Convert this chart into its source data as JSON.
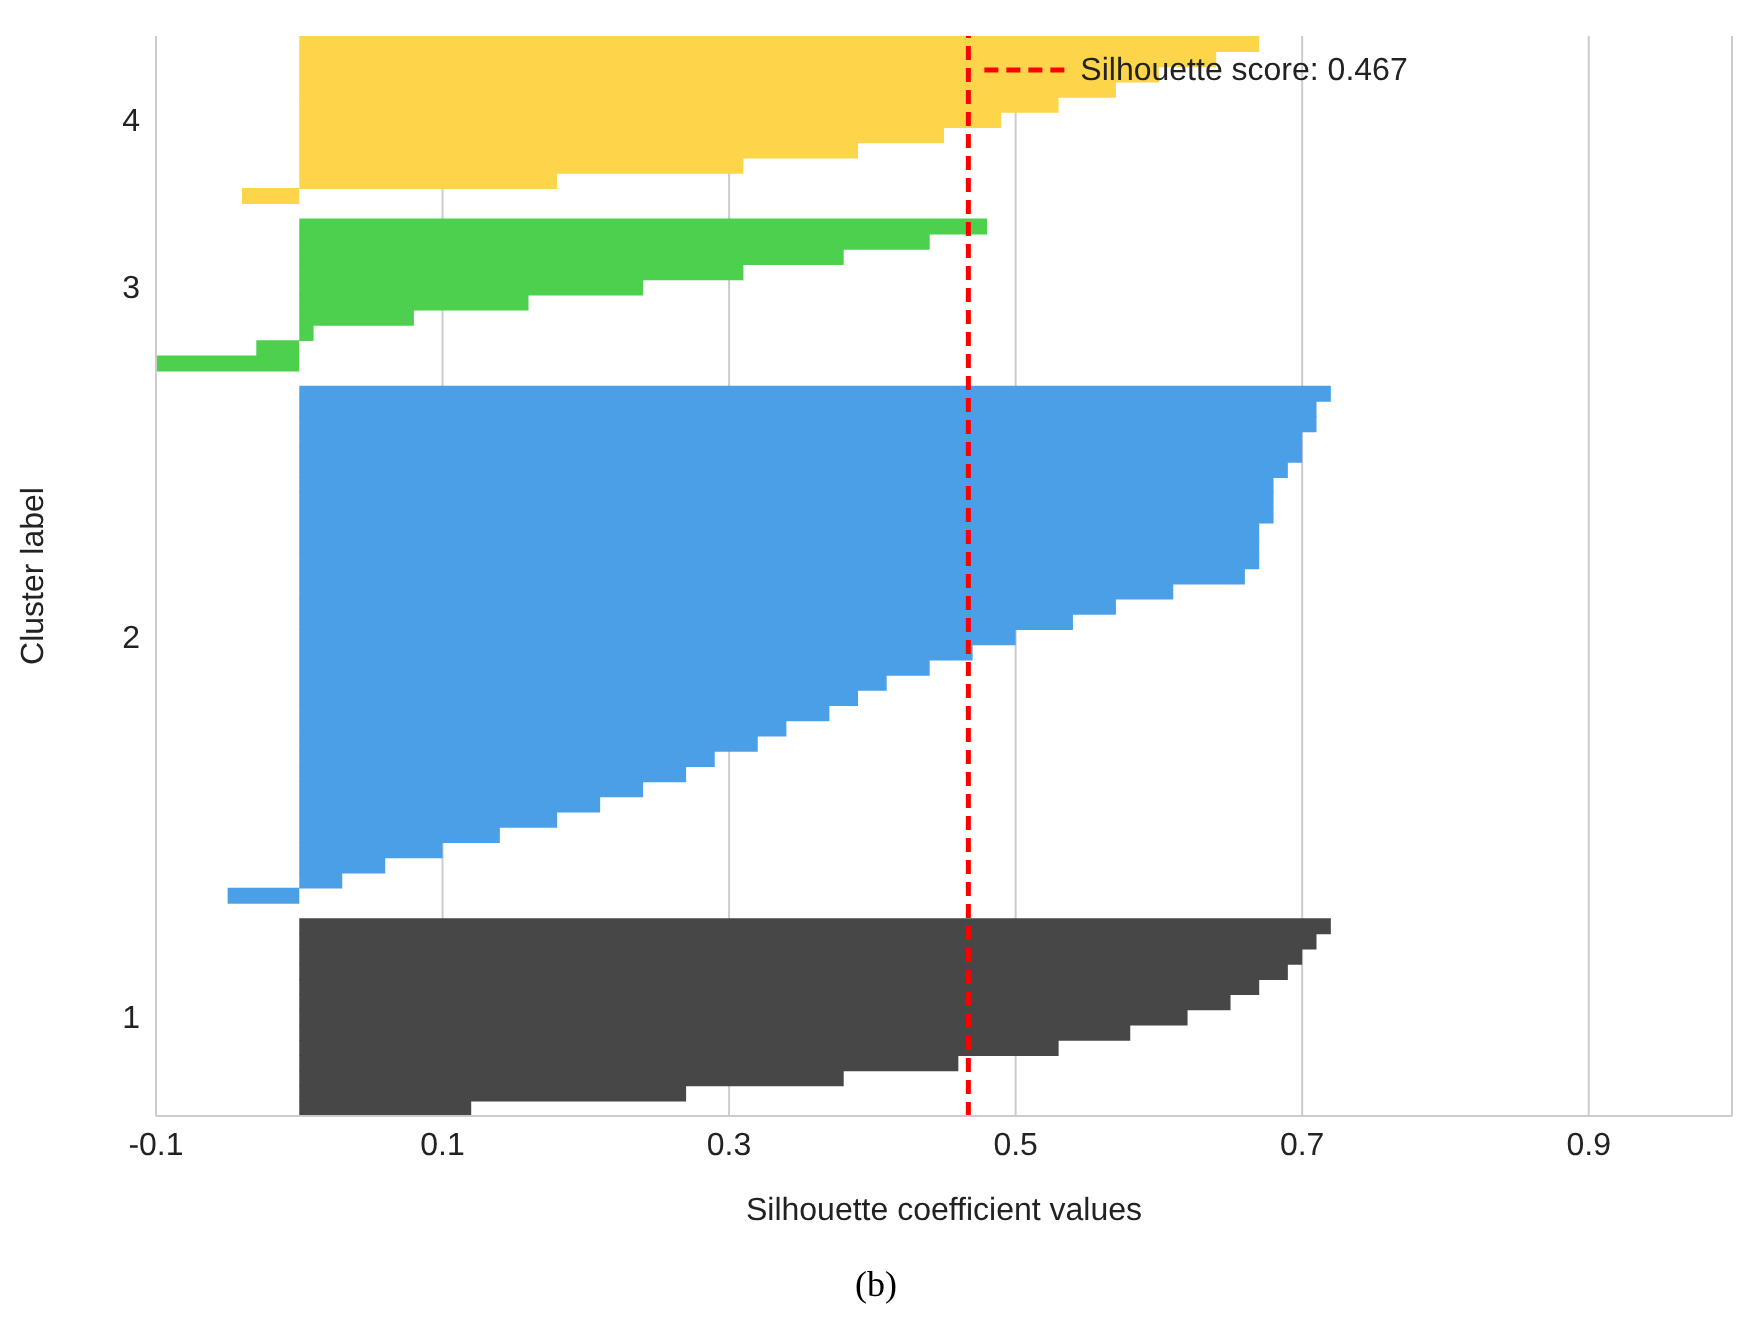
{
  "chart_data": {
    "type": "bar",
    "orientation": "horizontal",
    "stacked": true,
    "xlabel": "Silhouette coefficient values",
    "ylabel": "Cluster label",
    "categories": [
      null,
      null,
      null,
      null,
      null,
      "4",
      null,
      null,
      null,
      null,
      null,
      null,
      null,
      null,
      null,
      null,
      "3",
      null,
      null,
      null,
      null,
      null,
      null,
      null,
      null,
      null,
      null,
      null,
      null,
      null,
      null,
      null,
      null,
      null,
      null,
      null,
      null,
      null,
      null,
      "2",
      null,
      null,
      null,
      null,
      null,
      null,
      null,
      null,
      null,
      null,
      null,
      null,
      null,
      null,
      null,
      null,
      null,
      null,
      null,
      null,
      null,
      null,
      null,
      null,
      "1",
      null,
      null,
      null,
      null,
      null,
      null
    ],
    "series": [
      {
        "color": "#fdd54b",
        "values": [
          0.67,
          0.64,
          0.6,
          0.57,
          0.53,
          0.49,
          0.45,
          0.39,
          0.31,
          0.18,
          -0.04,
          null,
          null,
          null,
          null,
          null,
          null,
          null,
          null,
          null,
          null,
          null,
          null,
          null,
          null,
          null,
          null,
          null,
          null,
          null,
          null,
          null,
          null,
          null,
          null,
          null,
          null,
          null,
          null,
          null,
          null,
          null,
          null,
          null,
          null,
          null,
          null,
          null,
          null,
          null,
          null,
          null,
          null,
          null,
          null,
          null,
          null,
          null,
          null,
          null,
          null,
          null,
          null,
          null,
          null,
          null,
          null,
          null,
          null,
          null,
          null
        ]
      },
      {
        "color": "#4dd04d",
        "values": [
          null,
          null,
          null,
          null,
          null,
          null,
          null,
          null,
          null,
          null,
          null,
          null,
          0.48,
          0.44,
          0.38,
          0.31,
          0.24,
          0.16,
          0.08,
          0.01,
          -0.03,
          -0.1,
          null,
          null,
          null,
          null,
          null,
          null,
          null,
          null,
          null,
          null,
          null,
          null,
          null,
          null,
          null,
          null,
          null,
          null,
          null,
          null,
          null,
          null,
          null,
          null,
          null,
          null,
          null,
          null,
          null,
          null,
          null,
          null,
          null,
          null,
          null,
          null,
          null,
          null,
          null,
          null,
          null,
          null,
          null,
          null,
          null,
          null,
          null,
          null,
          null
        ]
      },
      {
        "color": "#4a9fe6",
        "values": [
          null,
          null,
          null,
          null,
          null,
          null,
          null,
          null,
          null,
          null,
          null,
          null,
          null,
          null,
          null,
          null,
          null,
          null,
          null,
          null,
          null,
          null,
          null,
          0.72,
          0.71,
          0.71,
          0.7,
          0.7,
          0.69,
          0.68,
          0.68,
          0.68,
          0.67,
          0.67,
          0.67,
          0.66,
          0.61,
          0.57,
          0.54,
          0.5,
          0.47,
          0.44,
          0.41,
          0.39,
          0.37,
          0.34,
          0.32,
          0.29,
          0.27,
          0.24,
          0.21,
          0.18,
          0.14,
          0.1,
          0.06,
          0.03,
          -0.05,
          null,
          null,
          null,
          null,
          null,
          null,
          null,
          null,
          null,
          null,
          null,
          null,
          null,
          null
        ]
      },
      {
        "color": "#474747",
        "values": [
          null,
          null,
          null,
          null,
          null,
          null,
          null,
          null,
          null,
          null,
          null,
          null,
          null,
          null,
          null,
          null,
          null,
          null,
          null,
          null,
          null,
          null,
          null,
          null,
          null,
          null,
          null,
          null,
          null,
          null,
          null,
          null,
          null,
          null,
          null,
          null,
          null,
          null,
          null,
          null,
          null,
          null,
          null,
          null,
          null,
          null,
          null,
          null,
          null,
          null,
          null,
          null,
          null,
          null,
          null,
          null,
          null,
          null,
          0.72,
          0.71,
          0.7,
          0.69,
          0.67,
          0.65,
          0.62,
          0.58,
          0.53,
          0.46,
          0.38,
          0.27,
          0.12
        ]
      }
    ],
    "xlim": [
      -0.1,
      1.0
    ],
    "xticks": [
      -0.1,
      0.1,
      0.3,
      0.5,
      0.7,
      0.9
    ],
    "grid": "x",
    "legend": "top right",
    "ref_lines": [
      {
        "axis": "x",
        "value": 0.467,
        "label": "Silhouette score: 0.467",
        "color": "#ff0000",
        "line_style": "dashed"
      }
    ],
    "annotations": [
      "(b)"
    ]
  }
}
